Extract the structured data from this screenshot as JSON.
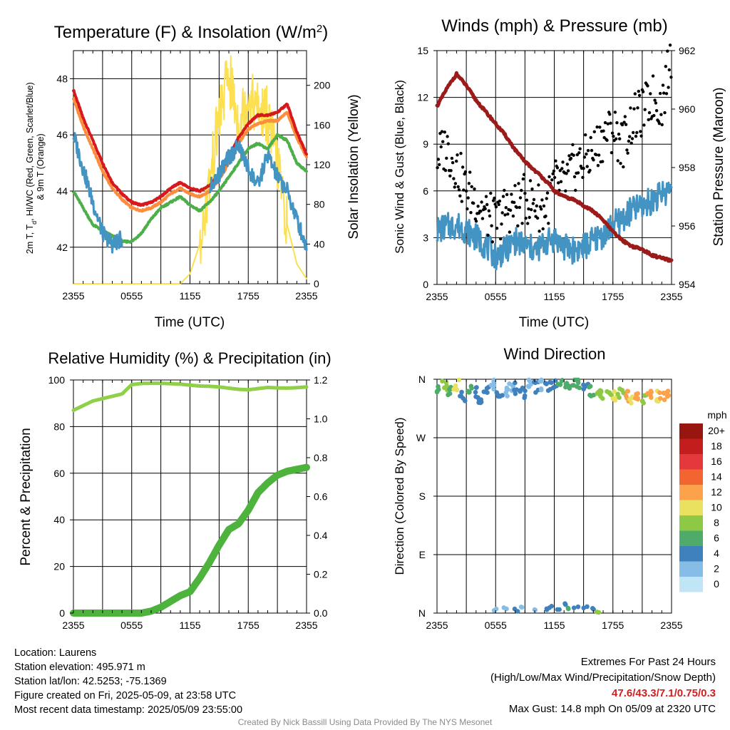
{
  "chart_data": [
    {
      "type": "line",
      "title": "Temperature (F) & Insolation (W/m²)",
      "xlabel": "Time (UTC)",
      "ylabel_left": "2m T, Td, HI/WC (Red, Green, Scarlet/Blue) & 9m T (Orange)",
      "ylabel_right": "Solar Insolation (Yellow)",
      "x_ticks": [
        "2355",
        "0555",
        "1155",
        "1755",
        "2355"
      ],
      "y_left_ticks": [
        42,
        44,
        46,
        48
      ],
      "y_left_lim": [
        40.7,
        49.0
      ],
      "y_right_ticks": [
        0,
        40,
        80,
        120,
        160,
        200
      ],
      "y_right_lim": [
        0,
        235
      ],
      "x_hours": [
        0,
        1,
        2,
        3,
        4,
        5,
        6,
        7,
        8,
        9,
        10,
        11,
        12,
        13,
        14,
        15,
        16,
        17,
        18,
        19,
        20,
        21,
        22,
        23,
        24
      ],
      "series": [
        {
          "name": "2m T",
          "color": "#d7191c",
          "axis": "left",
          "width": 4,
          "values": [
            47.6,
            46.6,
            45.8,
            45.0,
            44.3,
            43.9,
            43.6,
            43.5,
            43.6,
            43.8,
            44.1,
            44.3,
            44.1,
            44.0,
            44.2,
            44.6,
            45.2,
            45.9,
            46.4,
            46.7,
            46.7,
            46.8,
            47.1,
            46.1,
            45.3
          ]
        },
        {
          "name": "9m T",
          "color": "#fd8d3c",
          "axis": "left",
          "width": 4,
          "values": [
            47.3,
            46.3,
            45.5,
            44.7,
            44.1,
            43.7,
            43.4,
            43.3,
            43.4,
            43.6,
            43.9,
            44.1,
            43.9,
            43.8,
            44.0,
            44.4,
            45.0,
            45.7,
            46.2,
            46.4,
            46.5,
            46.5,
            46.8,
            45.9,
            45.2
          ]
        },
        {
          "name": "Td",
          "color": "#4daf4a",
          "axis": "left",
          "width": 4,
          "values": [
            44.0,
            43.4,
            42.8,
            42.6,
            42.4,
            42.2,
            42.2,
            42.5,
            43.0,
            43.4,
            43.6,
            43.8,
            43.5,
            43.3,
            43.6,
            44.0,
            44.5,
            45.0,
            45.5,
            45.7,
            45.5,
            46.0,
            45.8,
            45.0,
            44.7
          ]
        },
        {
          "name": "HI/WC",
          "color": "#4393c3",
          "axis": "left",
          "width": 3,
          "values": [
            46.0,
            44.8,
            43.6,
            42.5,
            42.1,
            42.3,
            null,
            42.3,
            null,
            null,
            null,
            null,
            null,
            null,
            44.1,
            44.6,
            45.2,
            45.6,
            44.8,
            44.2,
            45.3,
            44.5,
            44.0,
            43.0,
            42.0
          ]
        },
        {
          "name": "Solar Insolation",
          "color": "#fce051",
          "axis": "right",
          "width": 2,
          "values": [
            0,
            0,
            0,
            0,
            0,
            0,
            0,
            0,
            0,
            0,
            0,
            0,
            10,
            40,
            100,
            170,
            210,
            160,
            190,
            175,
            170,
            120,
            60,
            20,
            5
          ]
        }
      ]
    },
    {
      "type": "line",
      "title": "Winds (mph) & Pressure (mb)",
      "xlabel": "Time (UTC)",
      "ylabel_left": "Sonic Wind & Gust (Blue, Black)",
      "ylabel_right": "Station Pressure (Maroon)",
      "x_ticks": [
        "2355",
        "0555",
        "1155",
        "1755",
        "2355"
      ],
      "y_left_ticks": [
        0,
        3,
        6,
        9,
        12,
        15
      ],
      "y_left_lim": [
        0,
        15
      ],
      "y_right_ticks": [
        954,
        956,
        958,
        960,
        962
      ],
      "y_right_lim": [
        954,
        962
      ],
      "x_hours": [
        0,
        1,
        2,
        3,
        4,
        5,
        6,
        7,
        8,
        9,
        10,
        11,
        12,
        13,
        14,
        15,
        16,
        17,
        18,
        19,
        20,
        21,
        22,
        23,
        24
      ],
      "series": [
        {
          "name": "Sonic Wind",
          "color": "#4393c3",
          "axis": "left",
          "values": [
            3.5,
            3.7,
            3.8,
            3.5,
            3.0,
            2.5,
            1.8,
            2.2,
            2.8,
            2.5,
            2.2,
            2.6,
            3.0,
            2.4,
            2.2,
            2.4,
            2.8,
            3.2,
            3.8,
            4.2,
            4.8,
            5.0,
            5.4,
            5.8,
            6.2
          ]
        },
        {
          "name": "Gust",
          "color": "#000000",
          "axis": "left",
          "values": [
            8.2,
            8.8,
            7.5,
            6.0,
            5.5,
            4.5,
            4.0,
            4.8,
            5.0,
            5.5,
            5.2,
            4.7,
            6.5,
            6.4,
            7.5,
            7.9,
            8.5,
            9.5,
            10.0,
            9.0,
            10.5,
            11.0,
            12.0,
            11.5,
            14.8
          ]
        },
        {
          "name": "Station Pressure",
          "color": "#9b1b1b",
          "axis": "right",
          "values": [
            960.1,
            960.7,
            961.2,
            960.8,
            960.3,
            959.9,
            959.5,
            959.1,
            958.6,
            958.2,
            957.9,
            957.6,
            957.2,
            957.0,
            956.9,
            956.7,
            956.5,
            956.2,
            955.8,
            955.5,
            955.3,
            955.2,
            955.0,
            954.9,
            954.8
          ]
        }
      ]
    },
    {
      "type": "line",
      "title": "Relative Humidity (%) & Precipitation (in)",
      "ylabel_left": "Percent & Precipitation",
      "x_ticks": [
        "2355",
        "0555",
        "1155",
        "1755",
        "2355"
      ],
      "y_left_ticks": [
        0,
        20,
        40,
        60,
        80,
        100
      ],
      "y_left_lim": [
        0,
        100
      ],
      "y_right_ticks": [
        "0.0",
        "0.2",
        "0.4",
        "0.6",
        "0.8",
        "1.0",
        "1.2"
      ],
      "y_right_lim": [
        0,
        1.2
      ],
      "x_hours": [
        0,
        1,
        2,
        3,
        4,
        5,
        6,
        7,
        8,
        9,
        10,
        11,
        12,
        13,
        14,
        15,
        16,
        17,
        18,
        19,
        20,
        21,
        22,
        23,
        24
      ],
      "series": [
        {
          "name": "Relative Humidity",
          "color": "#8fd048",
          "axis": "left",
          "values": [
            87,
            89,
            91,
            92,
            93,
            94,
            98,
            98.5,
            98.6,
            98.6,
            98.4,
            98.2,
            97.8,
            97.4,
            97.3,
            97.0,
            96.5,
            96.0,
            95.8,
            96.3,
            96.8,
            96.6,
            96.5,
            96.7,
            97.0
          ]
        },
        {
          "name": "Precipitation",
          "color": "#4db33d",
          "axis": "right",
          "values": [
            0,
            0,
            0,
            0,
            0,
            0,
            0,
            0,
            0.01,
            0.03,
            0.06,
            0.09,
            0.11,
            0.18,
            0.26,
            0.35,
            0.43,
            0.46,
            0.53,
            0.62,
            0.67,
            0.71,
            0.73,
            0.74,
            0.75
          ]
        }
      ]
    },
    {
      "type": "scatter",
      "title": "Wind Direction",
      "ylabel": "Direction (Colored By Speed)",
      "x_ticks": [
        "2355",
        "0555",
        "1155",
        "1755",
        "2355"
      ],
      "y_ticks": [
        "N",
        "W",
        "S",
        "E",
        "N"
      ],
      "y_lim_degrees": [
        0,
        360
      ],
      "points_hours": [
        0.3,
        0.8,
        1.4,
        2.0,
        2.6,
        3.3,
        3.9,
        4.5,
        5.1,
        5.8,
        6.4,
        7.0,
        7.6,
        8.2,
        8.8,
        9.5,
        10.1,
        10.7,
        11.3,
        12.0,
        12.6,
        13.2,
        13.8,
        14.5,
        15.2,
        15.8,
        16.4,
        17.0,
        17.6,
        18.2,
        18.8,
        19.4,
        20.0,
        20.6,
        21.2,
        21.8,
        22.4,
        23.0,
        23.6
      ],
      "points_degrees": [
        345,
        350,
        340,
        352,
        335,
        348,
        340,
        330,
        345,
        352,
        342,
        338,
        350,
        346,
        340,
        355,
        348,
        352,
        350,
        353,
        356,
        352,
        355,
        351,
        349,
        342,
        338,
        336,
        335,
        334,
        338,
        334,
        332,
        336,
        330,
        333,
        335,
        334,
        336
      ],
      "points_speed": [
        3,
        4,
        3,
        5,
        2,
        3,
        2,
        2,
        2,
        1,
        2,
        1,
        1,
        2,
        2,
        1,
        2,
        1,
        2,
        2,
        3,
        3,
        3,
        3,
        2,
        3,
        4,
        4,
        4,
        5,
        4,
        6,
        5,
        6,
        4,
        6,
        5,
        6,
        6
      ],
      "low_points_hours": [
        6.0,
        7.0,
        8.0,
        8.6,
        10.2,
        11.0,
        11.6,
        12.4,
        13.0,
        13.4,
        14.2,
        15.2,
        15.8,
        16.4
      ],
      "low_points_degrees": [
        5,
        8,
        4,
        9,
        3,
        6,
        10,
        7,
        12,
        5,
        8,
        10,
        6,
        4
      ],
      "low_points_speed": [
        1,
        1,
        2,
        1,
        1,
        2,
        2,
        2,
        2,
        3,
        2,
        2,
        2,
        4
      ],
      "legend": {
        "title": "mph",
        "labels": [
          "20+",
          "18",
          "16",
          "14",
          "12",
          "10",
          "8",
          "6",
          "4",
          "2",
          "0"
        ],
        "colors": [
          "#99150f",
          "#c41d1d",
          "#e5383c",
          "#f26530",
          "#fca24a",
          "#e9e15f",
          "#8ec946",
          "#4fab6a",
          "#3f81bd",
          "#86bde6",
          "#bfe5f6"
        ]
      }
    }
  ],
  "footer": {
    "location": "Location: Laurens",
    "elevation": "Station elevation: 495.971 m",
    "latlon": "Station lat/lon: 42.5253; -75.1369",
    "created": "Figure created on Fri, 2025-05-09, at 23:58 UTC",
    "recent": "Most recent data timestamp: 2025/05/09 23:55:00",
    "extremes_title": "Extremes For Past 24 Hours",
    "extremes_desc": "(High/Low/Max Wind/Precipitation/Snow Depth)",
    "extremes_values": "47.6/43.3/7.1/0.75/0.3",
    "max_gust": "Max Gust: 14.8 mph On 05/09 at 2320 UTC",
    "credit": "Created By Nick Bassill Using Data Provided By The NYS Mesonet"
  }
}
